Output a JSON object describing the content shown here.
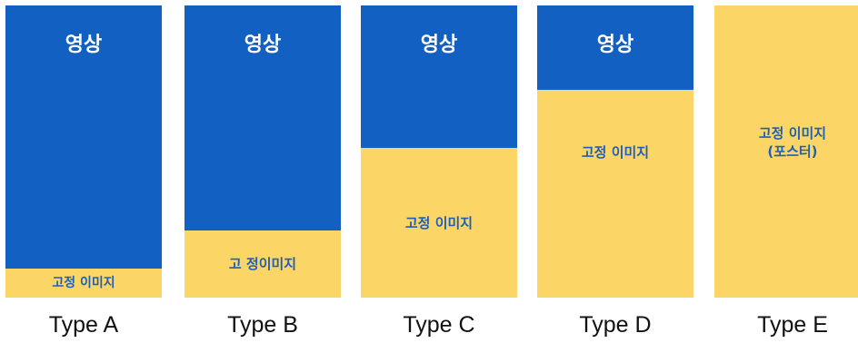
{
  "columns": [
    {
      "id": "a",
      "video_label": "영상",
      "image_label": "고정 이미지",
      "type_label": "Type A",
      "video_fraction": 0.9
    },
    {
      "id": "b",
      "video_label": "영상",
      "image_label": "고 정이미지",
      "type_label": "Type B",
      "video_fraction": 0.77
    },
    {
      "id": "c",
      "video_label": "영상",
      "image_label": "고정 이미지",
      "type_label": "Type C",
      "video_fraction": 0.49
    },
    {
      "id": "d",
      "video_label": "영상",
      "image_label": "고정 이미지",
      "type_label": "Type D",
      "video_fraction": 0.29
    },
    {
      "id": "e",
      "image_label_line1": "고정 이미지",
      "image_label_line2": "(포스터)",
      "type_label": "Type E",
      "video_fraction": 0.0
    }
  ],
  "colors": {
    "video": "#1160c2",
    "image": "#fbd566",
    "image_text": "#1f5fb8",
    "video_text": "#ffffff"
  }
}
